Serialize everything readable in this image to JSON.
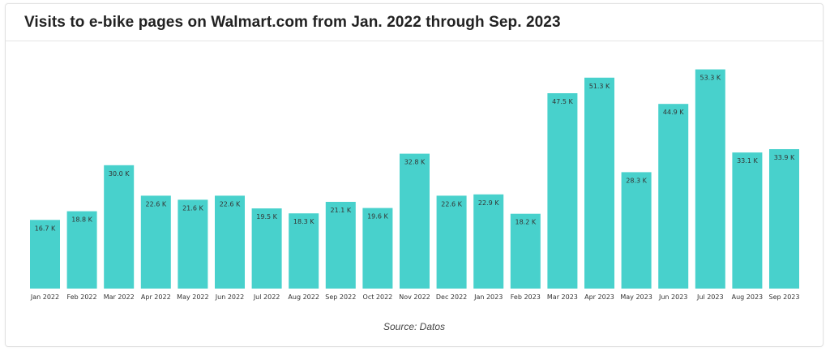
{
  "header": {
    "title": "Visits to e-bike pages on Walmart.com from Jan. 2022 through Sep. 2023"
  },
  "footer": {
    "source": "Source: Datos"
  },
  "colors": {
    "bar": "#48d1cc",
    "label_text": "#333333",
    "tick_text": "#333333"
  },
  "chart_data": {
    "type": "bar",
    "title": "Visits to e-bike pages on Walmart.com from Jan. 2022 through Sep. 2023",
    "xlabel": "",
    "ylabel": "",
    "ylim": [
      0,
      55000
    ],
    "grid": false,
    "legend": "none",
    "categories": [
      "Jan 2022",
      "Feb 2022",
      "Mar 2022",
      "Apr 2022",
      "May 2022",
      "Jun 2022",
      "Jul 2022",
      "Aug 2022",
      "Sep 2022",
      "Oct 2022",
      "Nov 2022",
      "Dec 2022",
      "Jan 2023",
      "Feb 2023",
      "Mar 2023",
      "Apr 2023",
      "May 2023",
      "Jun 2023",
      "Jul 2023",
      "Aug 2023",
      "Sep 2023"
    ],
    "values": [
      16700,
      18800,
      30000,
      22600,
      21600,
      22600,
      19500,
      18300,
      21100,
      19600,
      32800,
      22600,
      22900,
      18200,
      47500,
      51300,
      28300,
      44900,
      53300,
      33100,
      33900
    ],
    "labels": [
      "16.7 K",
      "18.8 K",
      "30.0 K",
      "22.6 K",
      "21.6 K",
      "22.6 K",
      "19.5 K",
      "18.3 K",
      "21.1 K",
      "19.6 K",
      "32.8 K",
      "22.6 K",
      "22.9 K",
      "18.2 K",
      "47.5 K",
      "51.3 K",
      "28.3 K",
      "44.9 K",
      "53.3 K",
      "33.1 K",
      "33.9 K"
    ]
  }
}
